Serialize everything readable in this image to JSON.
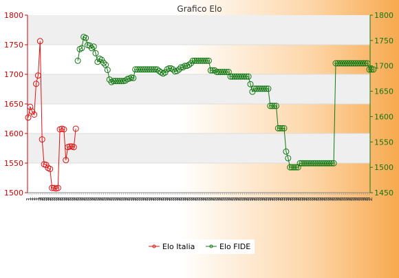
{
  "chart_data": {
    "type": "line",
    "title": "Grafico Elo",
    "grid": true,
    "legend_position": "bottom",
    "colors": {
      "elo_italia": "#e01010",
      "elo_fide": "#117711",
      "left_axis": "#cc0000",
      "right_axis": "#117711",
      "band": "#efefef"
    },
    "y_left": {
      "min": 1500,
      "max": 1800,
      "ticks": [
        "1500",
        "1550",
        "1600",
        "1650",
        "1700",
        "1750",
        "1800"
      ]
    },
    "y_right": {
      "min": 1450,
      "max": 1800,
      "ticks": [
        "1450",
        "1500",
        "1550",
        "1600",
        "1650",
        "1700",
        "1750",
        "1800"
      ]
    },
    "x_tick_labels": [
      "1",
      "1",
      "1",
      "1",
      "1",
      "1",
      "2",
      "2",
      "2",
      "2",
      "2",
      "2",
      "2",
      "2",
      "2",
      "2",
      "2",
      "2",
      "2",
      "2",
      "2",
      "2",
      "2",
      "2",
      "2",
      "2",
      "2",
      "2",
      "2",
      "2",
      "2",
      "2",
      "2",
      "2",
      "2",
      "2",
      "2",
      "2",
      "2",
      "2",
      "2",
      "2",
      "2",
      "2",
      "2",
      "2",
      "2",
      "2",
      "2",
      "2",
      "2",
      "2",
      "2",
      "2",
      "2",
      "2",
      "2",
      "2",
      "2",
      "2",
      "2",
      "2",
      "2",
      "2",
      "2",
      "2",
      "2",
      "2",
      "2",
      "2",
      "2",
      "2",
      "2",
      "2",
      "2",
      "2",
      "2",
      "2",
      "2",
      "2",
      "2",
      "2",
      "2",
      "2",
      "2",
      "2",
      "2",
      "2",
      "2",
      "2",
      "2",
      "2",
      "2",
      "2",
      "2",
      "2",
      "2",
      "2",
      "2",
      "2",
      "2",
      "2",
      "2",
      "2",
      "2",
      "2",
      "2",
      "2",
      "2",
      "2",
      "2",
      "2",
      "2",
      "2",
      "2",
      "2",
      "2",
      "2",
      "2",
      "2",
      "2",
      "2",
      "2",
      "2",
      "2",
      "2",
      "2",
      "2",
      "2",
      "2",
      "2",
      "2",
      "2",
      "2",
      "2",
      "2",
      "2",
      "2",
      "2",
      "2",
      "2",
      "2",
      "2",
      "2",
      "2",
      "2",
      "2",
      "2",
      "2",
      "2",
      "2",
      "2",
      "2",
      "2",
      "2",
      "2",
      "2",
      "2",
      "2",
      "2",
      "2",
      "2",
      "2",
      "2",
      "2",
      "2",
      "2",
      "2",
      "2",
      "2",
      "2",
      "2",
      "2"
    ],
    "series": [
      {
        "name": "Elo Italia",
        "axis": "left",
        "values": [
          1627,
          1645,
          1637,
          1632,
          1684,
          1698,
          1756,
          1590,
          1548,
          1547,
          1542,
          1540,
          1508,
          1508,
          1507,
          1508,
          1607,
          1608,
          1607,
          1555,
          1577,
          1578,
          1578,
          1577,
          1608
        ]
      },
      {
        "name": "Elo FIDE",
        "axis": "right",
        "values": [
          null,
          null,
          null,
          null,
          null,
          null,
          null,
          null,
          null,
          null,
          null,
          null,
          null,
          null,
          null,
          null,
          null,
          null,
          null,
          null,
          null,
          null,
          null,
          null,
          null,
          1710,
          1733,
          1735,
          1757,
          1755,
          1741,
          1740,
          1735,
          1738,
          1725,
          1708,
          1714,
          1712,
          1706,
          1702,
          1692,
          1673,
          1668,
          1670,
          1670,
          1670,
          1670,
          1670,
          1670,
          1671,
          1674,
          1675,
          1677,
          1676,
          1693,
          1693,
          1693,
          1693,
          1693,
          1693,
          1693,
          1693,
          1693,
          1693,
          1693,
          1693,
          1690,
          1687,
          1685,
          1687,
          1693,
          1695,
          1695,
          1693,
          1689,
          1690,
          1693,
          1697,
          1697,
          1700,
          1700,
          1702,
          1705,
          1710,
          1710,
          1710,
          1710,
          1710,
          1710,
          1710,
          1710,
          1710,
          1691,
          1691,
          1691,
          1688,
          1688,
          1688,
          1688,
          1688,
          1688,
          1688,
          1679,
          1679,
          1679,
          1679,
          1679,
          1679,
          1679,
          1679,
          1679,
          1679,
          1664,
          1649,
          1655,
          1655,
          1655,
          1655,
          1655,
          1655,
          1655,
          1655,
          1621,
          1621,
          1621,
          1621,
          1577,
          1577,
          1577,
          1577,
          1531,
          1518,
          1500,
          1500,
          1500,
          1500,
          1500,
          1508,
          1508,
          1508,
          1508,
          1508,
          1508,
          1508,
          1508,
          1508,
          1508,
          1508,
          1508,
          1508,
          1508,
          1508,
          1508,
          1508,
          1508,
          1705,
          1705,
          1705,
          1705,
          1705,
          1705,
          1705,
          1705,
          1705,
          1705,
          1705,
          1705,
          1705,
          1705,
          1705,
          1705,
          1705,
          1693,
          1693,
          1693
        ]
      }
    ]
  }
}
